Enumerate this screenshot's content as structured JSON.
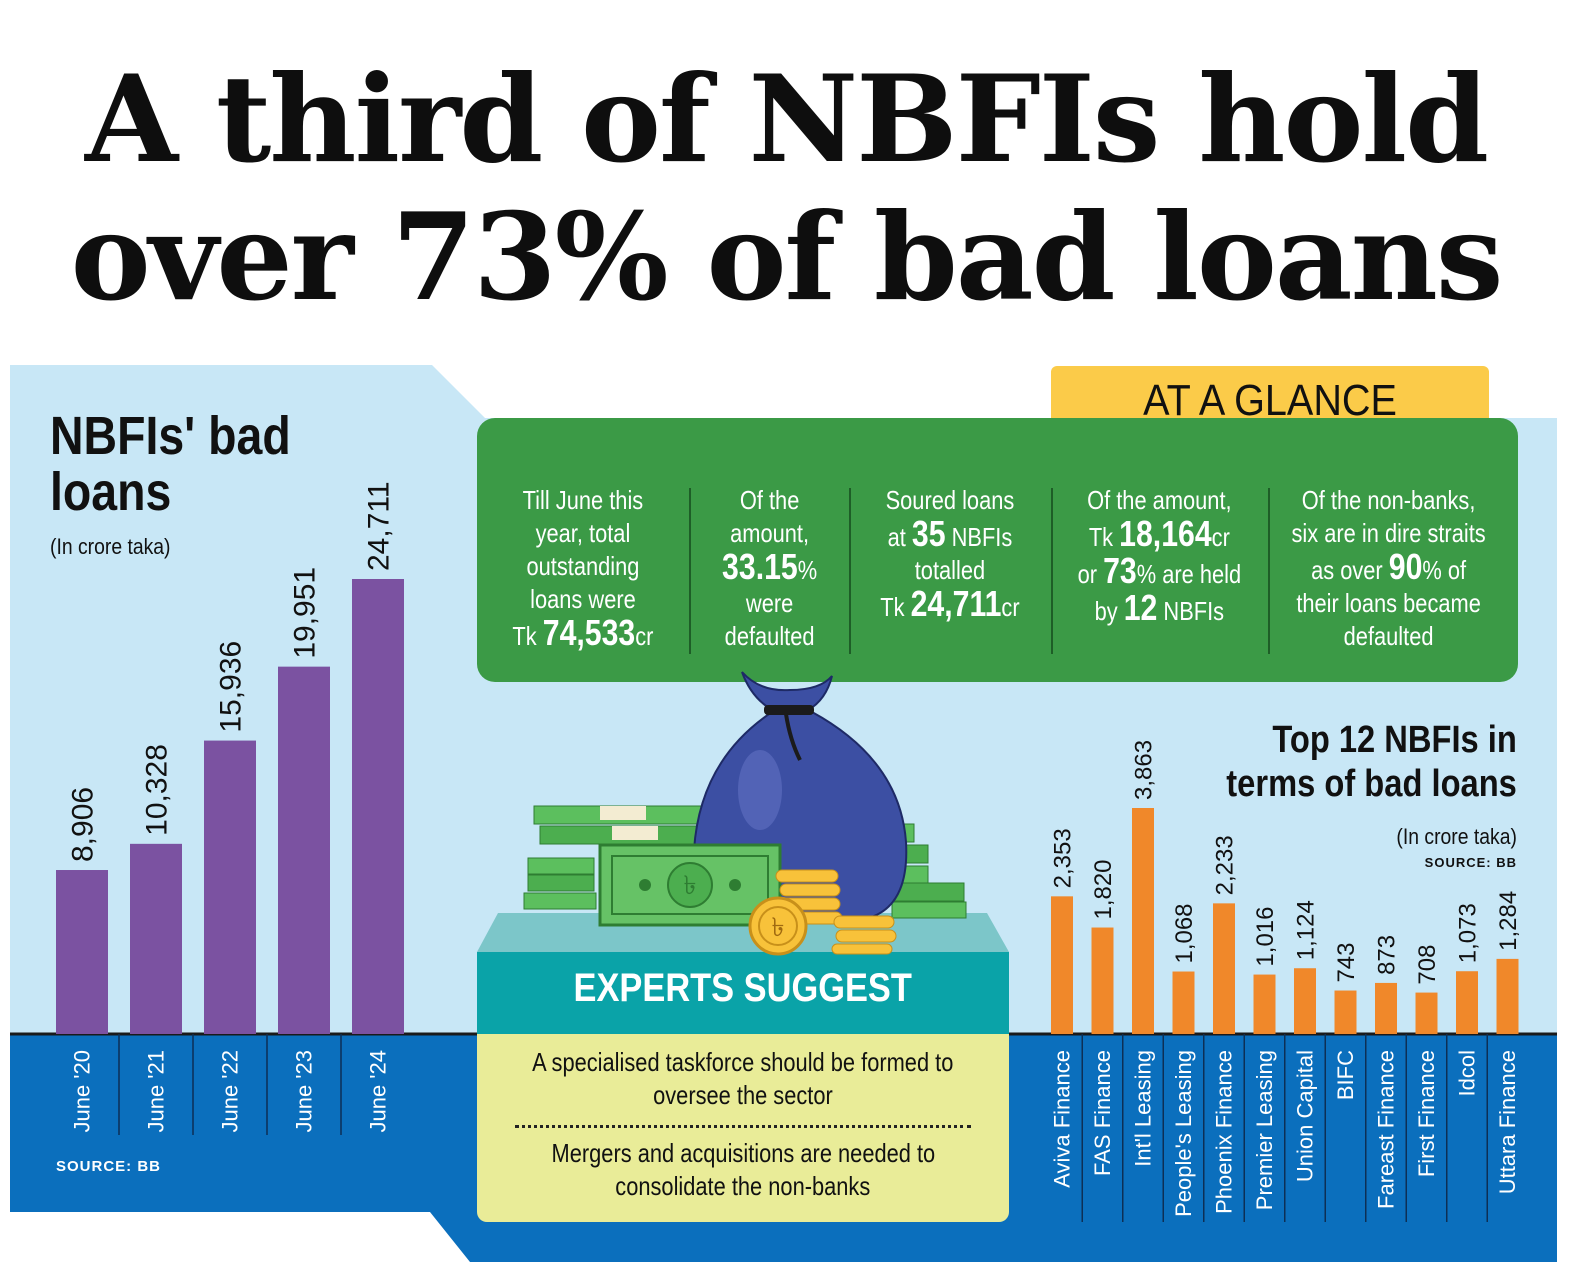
{
  "headline": {
    "line1": "A third of NBFIs hold",
    "line2": "over 73% of bad loans"
  },
  "chart_data": [
    {
      "type": "bar",
      "title": "NBFIs' bad loans",
      "unit": "(In crore taka)",
      "source": "SOURCE: BB",
      "categories": [
        "June '20",
        "June '21",
        "June '22",
        "June '23",
        "June '24"
      ],
      "values": [
        8906,
        10328,
        15936,
        19951,
        24711
      ],
      "value_labels": [
        "8,906",
        "10,328",
        "15,936",
        "19,951",
        "24,711"
      ],
      "ylim": [
        0,
        24711
      ],
      "bar_color": "#7b52a1"
    },
    {
      "type": "bar",
      "title": "Top 12 NBFIs in terms of bad loans",
      "unit": "(In crore taka)",
      "source": "SOURCE: BB",
      "categories": [
        "Aviva Finance",
        "FAS Finance",
        "Int'l Leasing",
        "People's Leasing",
        "Phoenix Finance",
        "Premier Leasing",
        "Union Capital",
        "BIFC",
        "Fareast Finance",
        "First Finance",
        "Idcol",
        "Uttara Finance"
      ],
      "values": [
        2353,
        1820,
        3863,
        1068,
        2233,
        1016,
        1124,
        743,
        873,
        708,
        1073,
        1284
      ],
      "value_labels": [
        "2,353",
        "1,820",
        "3,863",
        "1,068",
        "2,233",
        "1,016",
        "1,124",
        "743",
        "873",
        "708",
        "1,073",
        "1,284"
      ],
      "ylim": [
        0,
        3863
      ],
      "bar_color": "#f0882a"
    }
  ],
  "glance": {
    "tab": "AT A GLANCE",
    "items": [
      {
        "l1": "Till June this",
        "l2": "year, total",
        "l3": "outstanding",
        "l4": "loans were",
        "l5_pre": "Tk ",
        "l5_num": "74,533",
        "l5_post": "cr"
      },
      {
        "l1": "Of the",
        "l2": "amount,",
        "l3_num": "33.15",
        "l3_post": "%",
        "l4": "were",
        "l5": "defaulted"
      },
      {
        "l1": "Soured loans",
        "l2_pre": "at ",
        "l2_num": "35",
        "l2_post": " NBFIs",
        "l3": "totalled",
        "l4_pre": "Tk ",
        "l4_num": "24,711",
        "l4_post": "cr"
      },
      {
        "l1": "Of the amount,",
        "l2_pre": "Tk ",
        "l2_num": "18,164",
        "l2_post": "cr",
        "l3_pre": "or ",
        "l3_num": "73",
        "l3_post": "% are held",
        "l4_pre": "by ",
        "l4_num": "12",
        "l4_post": " NBFIs"
      },
      {
        "l1": "Of the non-banks,",
        "l2": "six are in dire straits",
        "l3_pre": "as over ",
        "l3_num": "90",
        "l3_post": "% of",
        "l4": "their loans became",
        "l5": "defaulted"
      }
    ]
  },
  "experts": {
    "title": "EXPERTS SUGGEST",
    "s1_l1": "A specialised taskforce should be formed to",
    "s1_l2": "oversee the sector",
    "s2_l1": "Mergers and acquisitions are needed to",
    "s2_l2": "consolidate the non-banks"
  },
  "colors": {
    "light_blue": "#c8e7f6",
    "dark_blue": "#0b6fbd",
    "green": "#3b9a46",
    "yellow": "#fbcb49",
    "teal": "#0aa3a8",
    "pale_yellow": "#e9ec98"
  },
  "icons": [
    "money-bag-icon",
    "cash-stack-icon",
    "coin-stack-icon",
    "taka-coin-icon"
  ]
}
